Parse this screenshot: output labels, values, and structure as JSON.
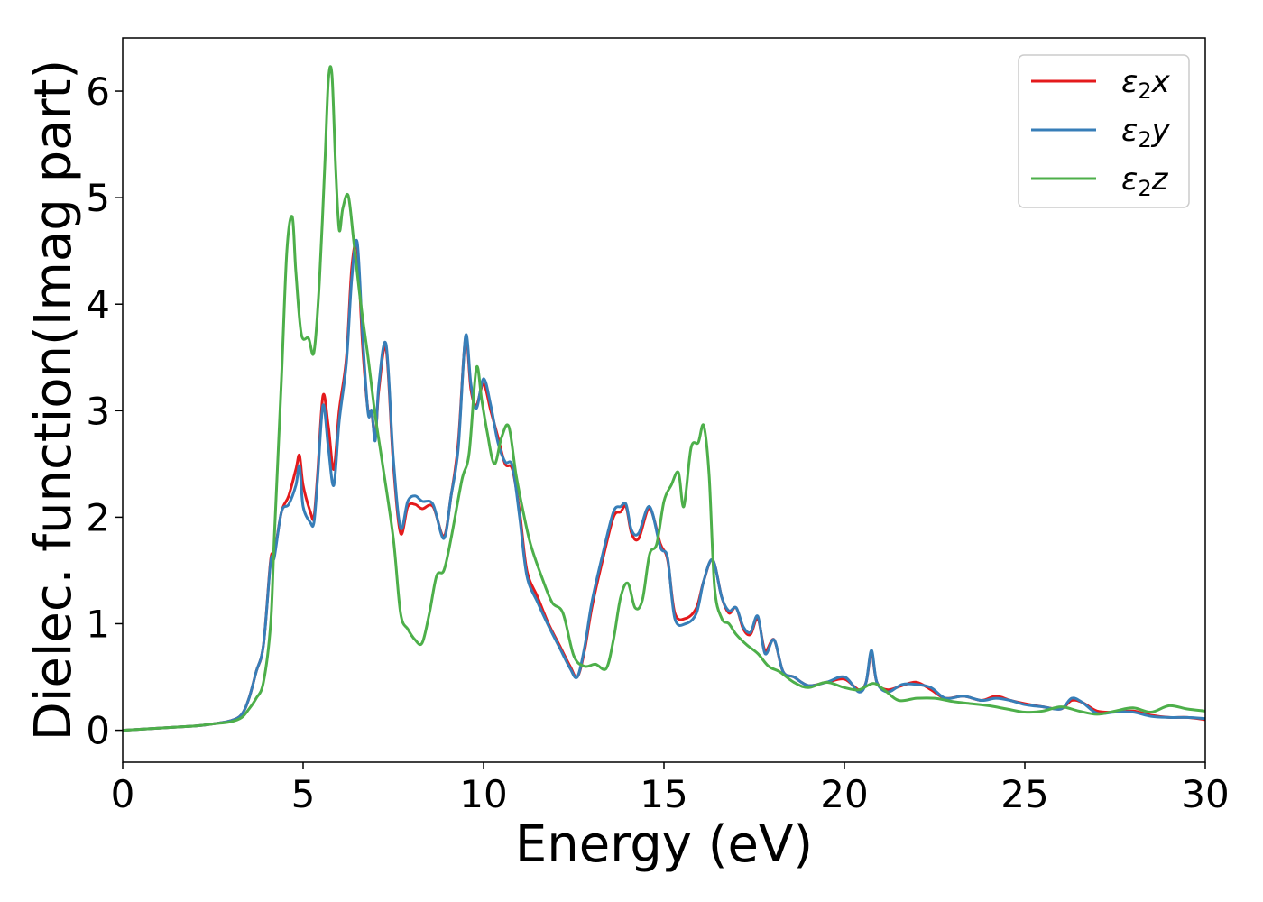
{
  "chart_data": {
    "type": "line",
    "xlabel": "Energy (eV)",
    "ylabel": "Dielec. function(Imag part)",
    "xlim": [
      0,
      30
    ],
    "ylim": [
      -0.3,
      6.5
    ],
    "xticks": [
      0,
      5,
      10,
      15,
      20,
      25,
      30
    ],
    "xtick_labels": [
      "0",
      "5",
      "10",
      "15",
      "20",
      "25",
      "30"
    ],
    "yticks": [
      0,
      1,
      2,
      3,
      4,
      5,
      6
    ],
    "ytick_labels": [
      "0",
      "1",
      "2",
      "3",
      "4",
      "5",
      "6"
    ],
    "legend_position": "top-right",
    "grid": false,
    "series": [
      {
        "name": "ε₂x",
        "legend_base": "ε",
        "legend_sub": "2",
        "legend_tail": "x",
        "color": "#e41a1c",
        "x": [
          0,
          1,
          2,
          2.5,
          3,
          3.3,
          3.5,
          3.7,
          3.9,
          4.1,
          4.2,
          4.4,
          4.6,
          4.8,
          4.9,
          5.0,
          5.2,
          5.3,
          5.4,
          5.55,
          5.7,
          5.85,
          6.0,
          6.2,
          6.35,
          6.5,
          6.65,
          6.8,
          6.9,
          7.0,
          7.1,
          7.3,
          7.5,
          7.7,
          7.9,
          8.1,
          8.3,
          8.6,
          8.9,
          9.1,
          9.3,
          9.5,
          9.65,
          9.8,
          10.0,
          10.2,
          10.4,
          10.6,
          10.8,
          11.0,
          11.2,
          11.5,
          11.8,
          12.1,
          12.4,
          12.6,
          12.8,
          13.0,
          13.3,
          13.6,
          13.8,
          13.95,
          14.1,
          14.3,
          14.6,
          14.9,
          15.1,
          15.3,
          15.6,
          15.9,
          16.1,
          16.35,
          16.6,
          16.8,
          17.0,
          17.2,
          17.4,
          17.6,
          17.8,
          18.05,
          18.3,
          18.6,
          19.0,
          19.5,
          20.0,
          20.4,
          20.6,
          20.75,
          20.9,
          21.2,
          21.6,
          22.0,
          22.4,
          22.8,
          23.3,
          23.8,
          24.2,
          24.6,
          25.0,
          25.5,
          26.0,
          26.3,
          26.6,
          27.0,
          27.5,
          28.0,
          28.5,
          29.0,
          29.5,
          30.0
        ],
        "values": [
          0.0,
          0.02,
          0.04,
          0.06,
          0.09,
          0.15,
          0.3,
          0.55,
          0.8,
          1.6,
          1.65,
          2.05,
          2.2,
          2.45,
          2.58,
          2.3,
          2.05,
          2.0,
          2.4,
          3.14,
          2.85,
          2.45,
          3.0,
          3.5,
          4.35,
          4.52,
          3.6,
          3.0,
          2.98,
          2.75,
          3.2,
          3.58,
          2.5,
          1.85,
          2.1,
          2.12,
          2.08,
          2.1,
          1.82,
          2.2,
          2.7,
          3.68,
          3.2,
          3.05,
          3.25,
          3.0,
          2.75,
          2.5,
          2.45,
          2.05,
          1.5,
          1.25,
          1.0,
          0.8,
          0.6,
          0.5,
          0.75,
          1.15,
          1.6,
          2.0,
          2.05,
          2.1,
          1.85,
          1.8,
          2.08,
          1.75,
          1.6,
          1.1,
          1.05,
          1.15,
          1.4,
          1.6,
          1.25,
          1.1,
          1.15,
          0.95,
          0.9,
          1.05,
          0.75,
          0.85,
          0.55,
          0.5,
          0.42,
          0.45,
          0.48,
          0.38,
          0.45,
          0.73,
          0.45,
          0.38,
          0.42,
          0.45,
          0.38,
          0.3,
          0.32,
          0.28,
          0.32,
          0.28,
          0.25,
          0.22,
          0.2,
          0.28,
          0.26,
          0.18,
          0.17,
          0.18,
          0.14,
          0.12,
          0.12,
          0.1
        ]
      },
      {
        "name": "ε₂y",
        "legend_base": "ε",
        "legend_sub": "2",
        "legend_tail": "y",
        "color": "#377eb8",
        "x": [
          0,
          1,
          2,
          2.5,
          3,
          3.3,
          3.5,
          3.7,
          3.9,
          4.1,
          4.2,
          4.4,
          4.6,
          4.8,
          4.9,
          5.0,
          5.2,
          5.3,
          5.4,
          5.55,
          5.7,
          5.85,
          6.0,
          6.2,
          6.35,
          6.5,
          6.65,
          6.8,
          6.9,
          7.0,
          7.1,
          7.3,
          7.5,
          7.7,
          7.9,
          8.1,
          8.3,
          8.6,
          8.9,
          9.1,
          9.3,
          9.5,
          9.65,
          9.8,
          10.0,
          10.2,
          10.4,
          10.6,
          10.8,
          11.0,
          11.2,
          11.5,
          11.8,
          12.1,
          12.4,
          12.6,
          12.8,
          13.0,
          13.3,
          13.6,
          13.8,
          13.95,
          14.1,
          14.3,
          14.6,
          14.9,
          15.1,
          15.3,
          15.6,
          15.9,
          16.1,
          16.35,
          16.6,
          16.8,
          17.0,
          17.2,
          17.4,
          17.6,
          17.8,
          18.05,
          18.3,
          18.6,
          19.0,
          19.5,
          20.0,
          20.4,
          20.6,
          20.75,
          20.9,
          21.2,
          21.6,
          22.0,
          22.4,
          22.8,
          23.3,
          23.8,
          24.2,
          24.6,
          25.0,
          25.5,
          26.0,
          26.3,
          26.6,
          27.0,
          27.5,
          28.0,
          28.5,
          29.0,
          29.5,
          30.0
        ],
        "values": [
          0.0,
          0.02,
          0.04,
          0.06,
          0.09,
          0.15,
          0.3,
          0.55,
          0.8,
          1.58,
          1.62,
          2.05,
          2.12,
          2.3,
          2.48,
          2.1,
          1.95,
          1.95,
          2.35,
          3.05,
          2.65,
          2.3,
          2.9,
          3.45,
          4.25,
          4.58,
          3.7,
          2.98,
          3.0,
          2.72,
          3.25,
          3.62,
          2.55,
          1.9,
          2.15,
          2.2,
          2.15,
          2.12,
          1.8,
          2.2,
          2.65,
          3.7,
          3.25,
          3.02,
          3.3,
          3.05,
          2.7,
          2.52,
          2.48,
          2.0,
          1.45,
          1.2,
          0.98,
          0.78,
          0.58,
          0.5,
          0.78,
          1.2,
          1.65,
          2.05,
          2.1,
          2.12,
          1.88,
          1.85,
          2.1,
          1.72,
          1.62,
          1.05,
          1.0,
          1.1,
          1.4,
          1.6,
          1.25,
          1.12,
          1.15,
          0.97,
          0.92,
          1.07,
          0.72,
          0.85,
          0.55,
          0.5,
          0.42,
          0.45,
          0.5,
          0.36,
          0.45,
          0.75,
          0.45,
          0.36,
          0.43,
          0.43,
          0.4,
          0.3,
          0.32,
          0.28,
          0.3,
          0.28,
          0.24,
          0.22,
          0.2,
          0.3,
          0.26,
          0.16,
          0.17,
          0.17,
          0.13,
          0.12,
          0.12,
          0.11
        ]
      },
      {
        "name": "ε₂z",
        "legend_base": "ε",
        "legend_sub": "2",
        "legend_tail": "z",
        "color": "#4daf4a",
        "x": [
          0,
          1,
          2,
          2.5,
          3,
          3.3,
          3.5,
          3.7,
          3.9,
          4.1,
          4.2,
          4.4,
          4.55,
          4.7,
          4.8,
          4.95,
          5.15,
          5.3,
          5.45,
          5.6,
          5.7,
          5.8,
          5.9,
          6.0,
          6.1,
          6.25,
          6.4,
          6.6,
          6.8,
          7.0,
          7.2,
          7.5,
          7.7,
          7.9,
          8.1,
          8.3,
          8.5,
          8.7,
          8.9,
          9.1,
          9.4,
          9.6,
          9.8,
          9.95,
          10.1,
          10.3,
          10.5,
          10.7,
          10.9,
          11.1,
          11.3,
          11.6,
          11.9,
          12.2,
          12.5,
          12.8,
          13.1,
          13.4,
          13.6,
          13.8,
          14.0,
          14.2,
          14.4,
          14.6,
          14.8,
          15.0,
          15.2,
          15.4,
          15.55,
          15.75,
          15.95,
          16.1,
          16.25,
          16.4,
          16.6,
          16.8,
          17.0,
          17.3,
          17.6,
          17.9,
          18.2,
          18.6,
          19.0,
          19.5,
          20.0,
          20.4,
          20.8,
          21.1,
          21.5,
          22.0,
          22.5,
          23.0,
          23.5,
          24.0,
          24.5,
          25.0,
          25.5,
          26.0,
          26.5,
          27.0,
          27.5,
          28.0,
          28.5,
          29.0,
          29.5,
          30.0
        ],
        "values": [
          0.0,
          0.02,
          0.04,
          0.06,
          0.08,
          0.12,
          0.2,
          0.3,
          0.45,
          1.0,
          1.8,
          3.3,
          4.5,
          4.82,
          4.3,
          3.72,
          3.68,
          3.55,
          4.2,
          5.3,
          6.1,
          6.15,
          5.3,
          4.7,
          4.9,
          5.02,
          4.6,
          4.0,
          3.5,
          2.95,
          2.5,
          1.8,
          1.1,
          0.95,
          0.85,
          0.82,
          1.1,
          1.45,
          1.5,
          1.8,
          2.35,
          2.6,
          3.4,
          3.1,
          2.8,
          2.5,
          2.75,
          2.85,
          2.4,
          2.05,
          1.75,
          1.45,
          1.2,
          1.1,
          0.7,
          0.6,
          0.62,
          0.58,
          0.85,
          1.25,
          1.38,
          1.15,
          1.22,
          1.65,
          1.75,
          2.15,
          2.3,
          2.42,
          2.1,
          2.65,
          2.7,
          2.86,
          2.4,
          1.35,
          1.05,
          1.0,
          0.9,
          0.8,
          0.72,
          0.6,
          0.55,
          0.45,
          0.4,
          0.45,
          0.4,
          0.38,
          0.44,
          0.38,
          0.28,
          0.3,
          0.3,
          0.27,
          0.25,
          0.23,
          0.2,
          0.17,
          0.18,
          0.22,
          0.18,
          0.15,
          0.18,
          0.21,
          0.17,
          0.23,
          0.2,
          0.18
        ]
      }
    ]
  }
}
